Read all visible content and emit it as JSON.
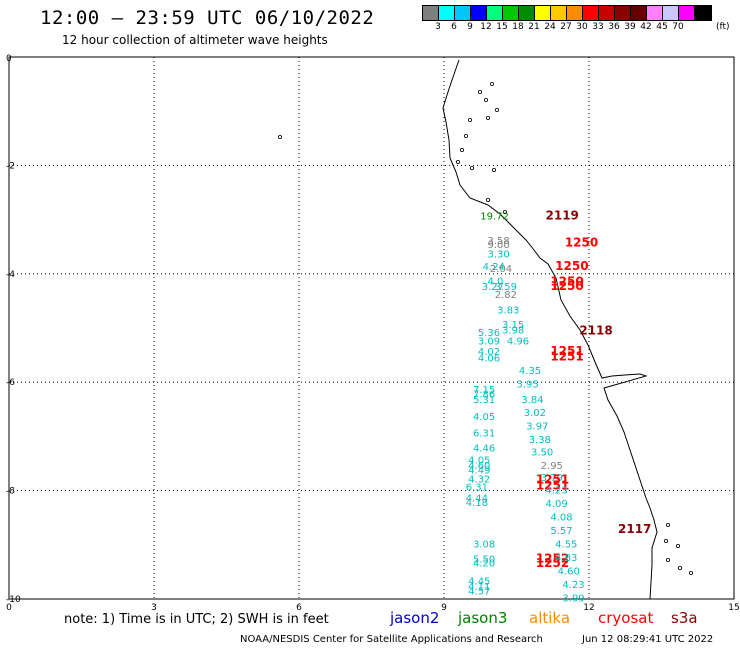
{
  "header": {
    "title": "12:00 – 23:59 UTC 06/10/2022",
    "subtitle": "12 hour collection of altimeter wave heights"
  },
  "colorbar": {
    "colors": [
      "#7f7f7f",
      "#00ffff",
      "#00c8ff",
      "#0000ff",
      "#00ff7f",
      "#00c800",
      "#008c00",
      "#ffff00",
      "#ffc800",
      "#ff8c00",
      "#ff0000",
      "#c80000",
      "#8c0000",
      "#640000",
      "#ff7fff",
      "#c8c8ff",
      "#ff00ff",
      "#000000"
    ],
    "ticks": [
      "3",
      "6",
      "9",
      "12",
      "15",
      "18",
      "21",
      "24",
      "27",
      "30",
      "33",
      "36",
      "39",
      "42",
      "45",
      "70"
    ],
    "unit": "(ft)"
  },
  "map": {
    "x_ticks": [
      "0",
      "3",
      "6",
      "9",
      "12",
      "15"
    ],
    "y_ticks": [
      "0",
      "-2",
      "-4",
      "-6",
      "-8",
      "-10"
    ],
    "sat_colors": {
      "jason2": "#0000cc",
      "jason3": "#008000",
      "altika": "#ff8c00",
      "cryosat": "#ff0000",
      "s3a": "#8b0000",
      "grey": "#7f7f7f",
      "cyan": "#00bfbf"
    },
    "values": [
      {
        "t": "19.72",
        "x": 9.75,
        "y": -3.0,
        "c": "jason3"
      },
      {
        "t": "2119",
        "x": 11.1,
        "y": -3.0,
        "c": "s3a",
        "p": 1
      },
      {
        "t": "3.58",
        "x": 9.9,
        "y": -3.45,
        "c": "grey"
      },
      {
        "t": "9.00",
        "x": 9.9,
        "y": -3.52,
        "c": "grey"
      },
      {
        "t": "1250",
        "x": 11.5,
        "y": -3.5,
        "c": "cryosat",
        "p": 1
      },
      {
        "t": "3.30",
        "x": 9.9,
        "y": -3.7,
        "c": "cyan"
      },
      {
        "t": "4.24",
        "x": 9.8,
        "y": -3.93,
        "c": "cyan"
      },
      {
        "t": "2.04",
        "x": 9.95,
        "y": -3.97,
        "c": "grey"
      },
      {
        "t": "1250",
        "x": 11.3,
        "y": -3.93,
        "c": "cryosat",
        "p": 1
      },
      {
        "t": "4.0",
        "x": 9.9,
        "y": -4.2,
        "c": "cyan"
      },
      {
        "t": "1250",
        "x": 11.2,
        "y": -4.22,
        "c": "cryosat",
        "p": 1
      },
      {
        "t": "1250",
        "x": 11.2,
        "y": -4.3,
        "c": "cryosat",
        "p": 1
      },
      {
        "t": "3.27",
        "x": 9.78,
        "y": -4.3,
        "c": "cyan"
      },
      {
        "t": "3.59",
        "x": 10.05,
        "y": -4.3,
        "c": "cyan"
      },
      {
        "t": "2.82",
        "x": 10.05,
        "y": -4.45,
        "c": "grey"
      },
      {
        "t": "3.83",
        "x": 10.1,
        "y": -4.73,
        "c": "cyan"
      },
      {
        "t": "3.15",
        "x": 10.2,
        "y": -5.0,
        "c": "cyan"
      },
      {
        "t": "3.98",
        "x": 10.2,
        "y": -5.1,
        "c": "cyan"
      },
      {
        "t": "2118",
        "x": 11.8,
        "y": -5.12,
        "c": "s3a",
        "p": 1
      },
      {
        "t": "5.36",
        "x": 9.7,
        "y": -5.15,
        "c": "cyan"
      },
      {
        "t": "3.09",
        "x": 9.7,
        "y": -5.3,
        "c": "cyan"
      },
      {
        "t": "4.96",
        "x": 10.3,
        "y": -5.3,
        "c": "cyan"
      },
      {
        "t": "1251",
        "x": 11.2,
        "y": -5.5,
        "c": "cryosat",
        "p": 1
      },
      {
        "t": "1251",
        "x": 11.2,
        "y": -5.6,
        "c": "cryosat",
        "p": 1
      },
      {
        "t": "4.02",
        "x": 9.7,
        "y": -5.5,
        "c": "cyan"
      },
      {
        "t": "4.06",
        "x": 9.7,
        "y": -5.62,
        "c": "cyan"
      },
      {
        "t": "4.35",
        "x": 10.55,
        "y": -5.85,
        "c": "cyan"
      },
      {
        "t": "3.95",
        "x": 10.5,
        "y": -6.1,
        "c": "cyan"
      },
      {
        "t": "7.15",
        "x": 9.6,
        "y": -6.2,
        "c": "cyan"
      },
      {
        "t": "7.86",
        "x": 9.6,
        "y": -6.28,
        "c": "cyan"
      },
      {
        "t": "5.31",
        "x": 9.6,
        "y": -6.38,
        "c": "cyan"
      },
      {
        "t": "3.84",
        "x": 10.6,
        "y": -6.38,
        "c": "cyan"
      },
      {
        "t": "3.02",
        "x": 10.65,
        "y": -6.62,
        "c": "cyan"
      },
      {
        "t": "4.05",
        "x": 9.6,
        "y": -6.7,
        "c": "cyan"
      },
      {
        "t": "3.97",
        "x": 10.7,
        "y": -6.87,
        "c": "cyan"
      },
      {
        "t": "6.31",
        "x": 9.6,
        "y": -7.0,
        "c": "cyan"
      },
      {
        "t": "3.38",
        "x": 10.75,
        "y": -7.12,
        "c": "cyan"
      },
      {
        "t": "4.46",
        "x": 9.6,
        "y": -7.28,
        "c": "cyan"
      },
      {
        "t": "3.50",
        "x": 10.8,
        "y": -7.35,
        "c": "cyan"
      },
      {
        "t": "4.05",
        "x": 9.5,
        "y": -7.5,
        "c": "cyan"
      },
      {
        "t": "4.60",
        "x": 9.5,
        "y": -7.6,
        "c": "cyan"
      },
      {
        "t": "4.49",
        "x": 9.5,
        "y": -7.68,
        "c": "cyan"
      },
      {
        "t": "2.95",
        "x": 11.0,
        "y": -7.6,
        "c": "grey"
      },
      {
        "t": "4.32",
        "x": 9.5,
        "y": -7.85,
        "c": "cyan"
      },
      {
        "t": "3.79",
        "x": 11.0,
        "y": -7.82,
        "c": "cyan"
      },
      {
        "t": "1251",
        "x": 10.9,
        "y": -7.87,
        "c": "cryosat",
        "p": 1
      },
      {
        "t": "1251",
        "x": 10.9,
        "y": -7.98,
        "c": "cryosat",
        "p": 1
      },
      {
        "t": "6.31",
        "x": 9.45,
        "y": -8.0,
        "c": "cyan"
      },
      {
        "t": "4.23",
        "x": 11.1,
        "y": -8.05,
        "c": "cyan"
      },
      {
        "t": "4.44",
        "x": 9.45,
        "y": -8.2,
        "c": "cyan"
      },
      {
        "t": "4.18",
        "x": 9.45,
        "y": -8.28,
        "c": "cyan"
      },
      {
        "t": "4.09",
        "x": 11.1,
        "y": -8.3,
        "c": "cyan"
      },
      {
        "t": "4.08",
        "x": 11.2,
        "y": -8.55,
        "c": "cyan"
      },
      {
        "t": "2117",
        "x": 12.6,
        "y": -8.78,
        "c": "s3a",
        "p": 1
      },
      {
        "t": "5.57",
        "x": 11.2,
        "y": -8.8,
        "c": "cyan"
      },
      {
        "t": "3.08",
        "x": 9.6,
        "y": -9.05,
        "c": "cyan"
      },
      {
        "t": "4.55",
        "x": 11.3,
        "y": -9.05,
        "c": "cyan"
      },
      {
        "t": "5.50",
        "x": 9.6,
        "y": -9.33,
        "c": "cyan"
      },
      {
        "t": "4.20",
        "x": 9.6,
        "y": -9.4,
        "c": "cyan"
      },
      {
        "t": "1252",
        "x": 10.9,
        "y": -9.33,
        "c": "cryosat",
        "p": 1
      },
      {
        "t": "1252",
        "x": 10.9,
        "y": -9.41,
        "c": "cryosat",
        "p": 1
      },
      {
        "t": "4.83",
        "x": 11.3,
        "y": -9.3,
        "c": "cyan"
      },
      {
        "t": "4.60",
        "x": 11.35,
        "y": -9.55,
        "c": "cyan"
      },
      {
        "t": "4.45",
        "x": 9.5,
        "y": -9.73,
        "c": "cyan"
      },
      {
        "t": "4.23",
        "x": 11.45,
        "y": -9.8,
        "c": "cyan"
      },
      {
        "t": "4.11",
        "x": 9.5,
        "y": -9.83,
        "c": "cyan"
      },
      {
        "t": "4.57",
        "x": 9.5,
        "y": -9.92,
        "c": "cyan"
      },
      {
        "t": "3.99",
        "x": 11.45,
        "y": -10.05,
        "c": "cyan"
      }
    ]
  },
  "footer": {
    "note": "note:  1) Time is in UTC;  2) SWH is in feet",
    "legend": [
      {
        "label": "jason2",
        "color": "#0000cc"
      },
      {
        "label": "jason3",
        "color": "#008000"
      },
      {
        "label": "altika",
        "color": "#ff8c00"
      },
      {
        "label": "cryosat",
        "color": "#ff0000"
      },
      {
        "label": "s3a",
        "color": "#8b0000"
      }
    ],
    "credit": "NOAA/NESDIS Center for Satellite Applications and Research",
    "timestamp": "Jun 12 08:29:41 UTC 2022"
  }
}
